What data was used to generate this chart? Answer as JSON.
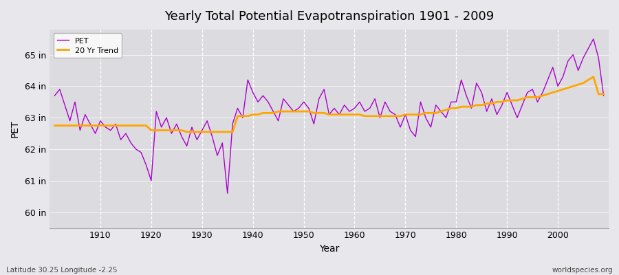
{
  "title": "Yearly Total Potential Evapotranspiration 1901 - 2009",
  "xlabel": "Year",
  "ylabel": "PET",
  "footnote_left": "Latitude 30.25 Longitude -2.25",
  "footnote_right": "worldspecies.org",
  "line_color": "#AA00CC",
  "trend_color": "#FFA500",
  "bg_color": "#E8E8EC",
  "plot_bg": "#DCDCE0",
  "ylim": [
    59.5,
    65.8
  ],
  "yticks": [
    60,
    61,
    62,
    63,
    64,
    65
  ],
  "ytick_labels": [
    "60 in",
    "61 in",
    "62 in",
    "63 in",
    "64 in",
    "65 in"
  ],
  "years": [
    1901,
    1902,
    1903,
    1904,
    1905,
    1906,
    1907,
    1908,
    1909,
    1910,
    1911,
    1912,
    1913,
    1914,
    1915,
    1916,
    1917,
    1918,
    1919,
    1920,
    1921,
    1922,
    1923,
    1924,
    1925,
    1926,
    1927,
    1928,
    1929,
    1930,
    1931,
    1932,
    1933,
    1934,
    1935,
    1936,
    1937,
    1938,
    1939,
    1940,
    1941,
    1942,
    1943,
    1944,
    1945,
    1946,
    1947,
    1948,
    1949,
    1950,
    1951,
    1952,
    1953,
    1954,
    1955,
    1956,
    1957,
    1958,
    1959,
    1960,
    1961,
    1962,
    1963,
    1964,
    1965,
    1966,
    1967,
    1968,
    1969,
    1970,
    1971,
    1972,
    1973,
    1974,
    1975,
    1976,
    1977,
    1978,
    1979,
    1980,
    1981,
    1982,
    1983,
    1984,
    1985,
    1986,
    1987,
    1988,
    1989,
    1990,
    1991,
    1992,
    1993,
    1994,
    1995,
    1996,
    1997,
    1998,
    1999,
    2000,
    2001,
    2002,
    2003,
    2004,
    2005,
    2006,
    2007,
    2008,
    2009
  ],
  "pet": [
    63.7,
    63.9,
    63.4,
    62.9,
    63.5,
    62.6,
    63.1,
    62.8,
    62.5,
    62.9,
    62.7,
    62.6,
    62.8,
    62.3,
    62.5,
    62.2,
    62.0,
    61.9,
    61.5,
    61.0,
    63.2,
    62.7,
    63.0,
    62.5,
    62.8,
    62.4,
    62.1,
    62.7,
    62.3,
    62.6,
    62.9,
    62.4,
    61.8,
    62.2,
    60.6,
    62.8,
    63.3,
    63.0,
    64.2,
    63.8,
    63.5,
    63.7,
    63.5,
    63.2,
    62.9,
    63.6,
    63.4,
    63.2,
    63.3,
    63.5,
    63.3,
    62.8,
    63.6,
    63.9,
    63.1,
    63.3,
    63.1,
    63.4,
    63.2,
    63.3,
    63.5,
    63.2,
    63.3,
    63.6,
    63.0,
    63.5,
    63.2,
    63.1,
    62.7,
    63.1,
    62.6,
    62.4,
    63.5,
    63.0,
    62.7,
    63.4,
    63.2,
    63.0,
    63.5,
    63.5,
    64.2,
    63.7,
    63.3,
    64.1,
    63.8,
    63.2,
    63.6,
    63.1,
    63.4,
    63.8,
    63.4,
    63.0,
    63.4,
    63.8,
    63.9,
    63.5,
    63.8,
    64.2,
    64.6,
    64.0,
    64.3,
    64.8,
    65.0,
    64.5,
    64.9,
    65.2,
    65.5,
    64.9,
    63.7
  ],
  "trend": [
    62.75,
    62.75,
    62.75,
    62.75,
    62.75,
    62.75,
    62.75,
    62.75,
    62.75,
    62.75,
    62.75,
    62.75,
    62.75,
    62.75,
    62.75,
    62.75,
    62.75,
    62.75,
    62.75,
    62.6,
    62.6,
    62.6,
    62.6,
    62.6,
    62.6,
    62.6,
    62.55,
    62.55,
    62.55,
    62.55,
    62.55,
    62.55,
    62.55,
    62.55,
    62.55,
    62.55,
    63.05,
    63.05,
    63.05,
    63.1,
    63.1,
    63.15,
    63.15,
    63.15,
    63.2,
    63.2,
    63.2,
    63.2,
    63.2,
    63.2,
    63.2,
    63.15,
    63.15,
    63.15,
    63.1,
    63.1,
    63.1,
    63.1,
    63.1,
    63.1,
    63.1,
    63.05,
    63.05,
    63.05,
    63.05,
    63.05,
    63.05,
    63.05,
    63.05,
    63.1,
    63.1,
    63.1,
    63.1,
    63.15,
    63.15,
    63.15,
    63.2,
    63.25,
    63.3,
    63.3,
    63.35,
    63.35,
    63.35,
    63.4,
    63.4,
    63.45,
    63.45,
    63.5,
    63.5,
    63.55,
    63.55,
    63.55,
    63.6,
    63.65,
    63.65,
    63.65,
    63.7,
    63.75,
    63.8,
    63.85,
    63.9,
    63.95,
    64.0,
    64.05,
    64.1,
    64.2,
    64.3,
    63.75,
    63.75
  ]
}
